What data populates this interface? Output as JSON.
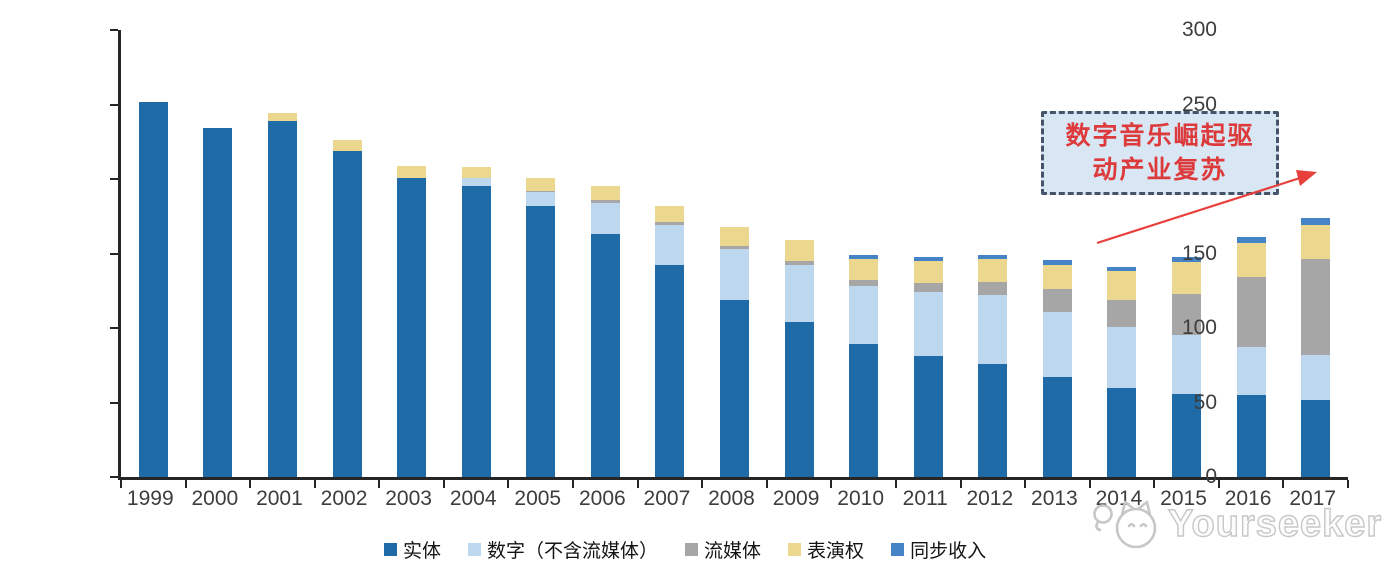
{
  "chart_data": {
    "type": "bar",
    "stacked": true,
    "title": "",
    "xlabel": "",
    "ylabel": "",
    "categories": [
      "1999",
      "2000",
      "2001",
      "2002",
      "2003",
      "2004",
      "2005",
      "2006",
      "2007",
      "2008",
      "2009",
      "2010",
      "2011",
      "2012",
      "2013",
      "2014",
      "2015",
      "2016",
      "2017"
    ],
    "series": [
      {
        "name": "实体",
        "color": "#1F6BA8",
        "values": [
          252,
          234,
          239,
          219,
          201,
          195,
          182,
          163,
          142,
          119,
          104,
          89,
          81,
          76,
          67,
          60,
          56,
          55,
          52
        ]
      },
      {
        "name": "数字（不含流媒体）",
        "color": "#BDD7EE",
        "values": [
          0,
          0,
          0,
          0,
          0,
          6,
          9,
          21,
          27,
          34,
          38,
          39,
          43,
          46,
          44,
          41,
          39,
          32,
          30
        ]
      },
      {
        "name": "流媒体",
        "color": "#A6A6A6",
        "values": [
          0,
          0,
          0,
          0,
          0,
          0,
          1,
          2,
          2,
          2,
          3,
          4,
          6,
          9,
          15,
          18,
          28,
          47,
          64
        ]
      },
      {
        "name": "表演权",
        "color": "#EBD78E",
        "values": [
          0,
          0,
          5,
          7,
          8,
          7,
          9,
          9,
          11,
          13,
          14,
          14,
          15,
          15,
          16,
          19,
          21,
          23,
          23
        ]
      },
      {
        "name": "同步收入",
        "color": "#4584C6",
        "values": [
          0,
          0,
          0,
          0,
          0,
          0,
          0,
          0,
          0,
          0,
          0,
          3,
          3,
          3,
          4,
          3,
          4,
          4,
          5
        ]
      }
    ],
    "ylim": [
      0,
      300
    ],
    "yticks": [
      0,
      50,
      100,
      150,
      200,
      250,
      300
    ],
    "grid": false,
    "legend_position": "bottom"
  },
  "annotation": {
    "line1": "数字音乐崛起驱",
    "line2": "动产业复苏",
    "text_color": "#dd3a3c",
    "box_fill": "#d9e6f4",
    "box_border": "#44546a",
    "arrow_color": "#e8403c"
  },
  "watermark": {
    "text": "Yourseeker"
  }
}
